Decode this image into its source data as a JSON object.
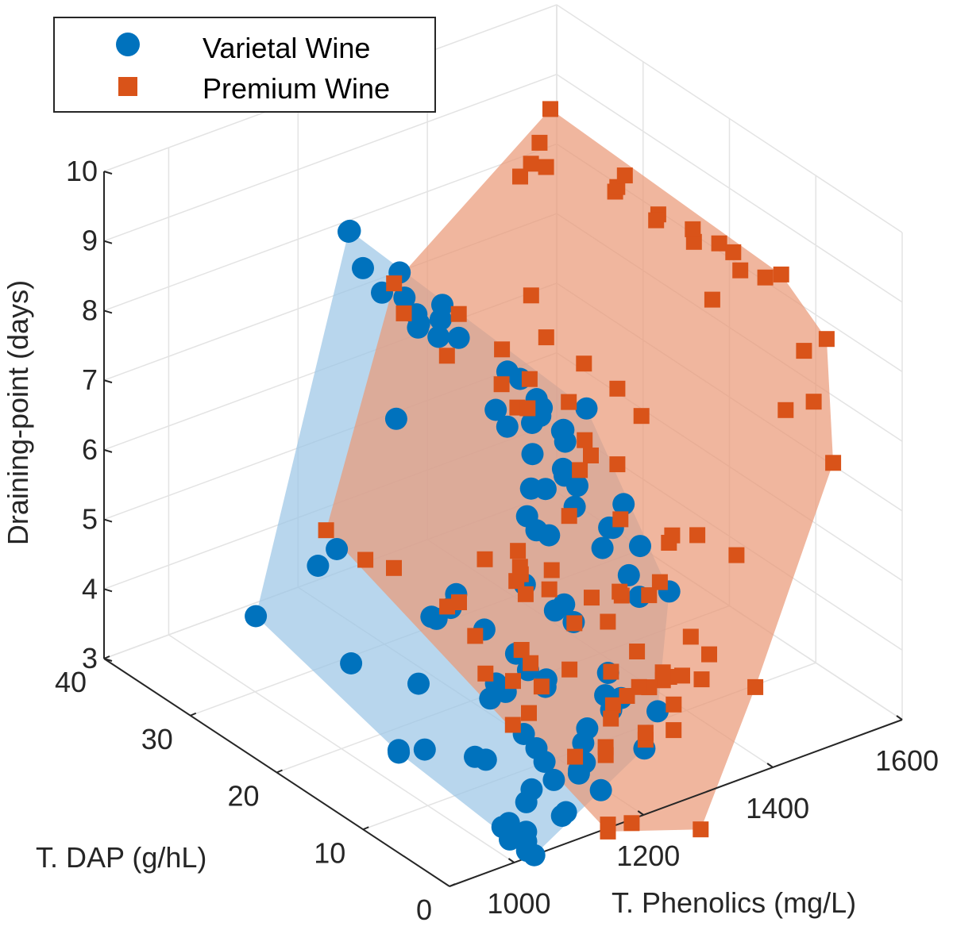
{
  "chart_data": {
    "type": "scatter3d",
    "title": "",
    "xlabel": "T. DAP (g/hL)",
    "ylabel": "T. Phenolics (mg/L)",
    "zlabel": "Draining-point (days)",
    "xlim": [
      0,
      40
    ],
    "ylim": [
      900,
      1600
    ],
    "zlim": [
      3,
      10
    ],
    "xticks": [
      "0",
      "10",
      "20",
      "30",
      "40"
    ],
    "yticks": [
      "1000",
      "1200",
      "1400",
      "1600"
    ],
    "zticks": [
      "3",
      "4",
      "5",
      "6",
      "7",
      "8",
      "9",
      "10"
    ],
    "legend_position": "top-left",
    "series": [
      {
        "name": "Varietal Wine",
        "marker": "circle",
        "color": "#0072BD",
        "hull_color": "#9CC6E6",
        "points": [
          [
            25.8,
            1088.6,
            9.65
          ],
          [
            28.2,
            1122.5,
            9.35
          ],
          [
            26.2,
            1116.1,
            9.0
          ],
          [
            23.4,
            1135.4,
            9.1
          ],
          [
            23.9,
            1149.6,
            8.65
          ],
          [
            22.7,
            1151.9,
            8.5
          ],
          [
            17.2,
            1118.6,
            9.2
          ],
          [
            25.0,
            1129.5,
            8.7
          ],
          [
            23.1,
            1159.9,
            8.25
          ],
          [
            22.7,
            1156.3,
            8.35
          ],
          [
            21.9,
            1178.8,
            8.4
          ],
          [
            21.6,
            1171.5,
            8.2
          ],
          [
            12.3,
            1173.4,
            8.35
          ],
          [
            23.0,
            1221.4,
            7.9
          ],
          [
            15.7,
            1181.2,
            7.6
          ],
          [
            14.5,
            1183.0,
            7.45
          ],
          [
            10.8,
            1223.2,
            7.4
          ],
          [
            12.2,
            1239.0,
            7.4
          ],
          [
            19.9,
            1308.4,
            6.85
          ],
          [
            21.8,
            1331.5,
            6.5
          ],
          [
            16.8,
            1302.5,
            6.15
          ],
          [
            19.6,
            1335.9,
            6.45
          ],
          [
            9.1,
            1268.5,
            6.15
          ],
          [
            9.7,
            1282.3,
            6.05
          ],
          [
            11.0,
            1283.4,
            5.65
          ],
          [
            7.7,
            1297.6,
            5.9
          ],
          [
            4.9,
            1305.2,
            5.45
          ],
          [
            16.0,
            1203.2,
            8.05
          ],
          [
            10.5,
            1175.0,
            8.2
          ],
          [
            13.9,
            1214.0,
            7.0
          ],
          [
            9.4,
            1201.0,
            7.2
          ],
          [
            13.5,
            1208.0,
            7.5
          ],
          [
            6.6,
            1200.0,
            8.3
          ],
          [
            25.1,
            1152.8,
            6.8
          ],
          [
            11.6,
            1252.7,
            6.6
          ],
          [
            8.4,
            1281.4,
            6.5
          ],
          [
            11.3,
            1244.5,
            6.35
          ],
          [
            13.6,
            1207.8,
            6.55
          ],
          [
            10.6,
            1190.0,
            6.85
          ],
          [
            12.6,
            1202.7,
            6.05
          ],
          [
            13.0,
            1193.6,
            6.25
          ],
          [
            12.3,
            1218.1,
            5.95
          ],
          [
            3.7,
            1226.7,
            6.05
          ],
          [
            2.4,
            1225.6,
            5.85
          ],
          [
            7.8,
            1181.4,
            5.45
          ],
          [
            15.6,
            1224.8,
            4.95
          ],
          [
            12.2,
            1226.0,
            4.85
          ],
          [
            10.9,
            1237.6,
            4.75
          ],
          [
            7.3,
            1247.5,
            3.75
          ],
          [
            31.0,
            1110.6,
            4.35
          ],
          [
            15.0,
            1110.6,
            5.25
          ],
          [
            26.6,
            1081.0,
            5.05
          ],
          [
            15.0,
            1080.3,
            5.0
          ],
          [
            17.4,
            1104.5,
            4.75
          ],
          [
            7.0,
            1114.9,
            4.8
          ],
          [
            9.0,
            1107.1,
            4.35
          ],
          [
            16.9,
            1179.6,
            4.35
          ],
          [
            17.6,
            1137.0,
            4.75
          ],
          [
            11.7,
            1159.3,
            4.5
          ],
          [
            9.1,
            1171.2,
            4.3
          ],
          [
            8.7,
            1164.6,
            4.25
          ],
          [
            4.1,
            1195.6,
            4.4
          ],
          [
            6.1,
            1226.7,
            4.45
          ],
          [
            4.3,
            1222.7,
            4.25
          ],
          [
            0.9,
            1233.8,
            4.3
          ],
          [
            15.1,
            1053.8,
            4.15
          ],
          [
            12.3,
            1136.2,
            4.1
          ],
          [
            19.8,
            1012.3,
            4.2
          ],
          [
            6.2,
            1195.8,
            3.75
          ],
          [
            0.0,
            1201.4,
            3.95
          ],
          [
            13.6,
            1144.6,
            3.75
          ],
          [
            8.6,
            1129.8,
            3.7
          ],
          [
            5.0,
            1113.6,
            3.65
          ],
          [
            6.3,
            1190.9,
            3.55
          ],
          [
            33.0,
            1041.2,
            3.7
          ],
          [
            16.0,
            1035.2,
            3.15
          ],
          [
            15.9,
            1033.6,
            3.2
          ],
          [
            5.2,
            1178.6,
            3.4
          ],
          [
            9.6,
            1162.7,
            3.3
          ],
          [
            4.6,
            1161.5,
            3.35
          ],
          [
            5.7,
            1137.5,
            3.25
          ],
          [
            13.7,
            1044.7,
            3.35
          ],
          [
            11.2,
            1105.8,
            3.2
          ],
          [
            4.2,
            1156.4,
            3.45
          ],
          [
            2.6,
            1168.8,
            3.25
          ],
          [
            10.4,
            1078.2,
            3.4
          ],
          [
            2.1,
            1102.1,
            3.15
          ],
          [
            6.3,
            1102.9,
            3.0
          ],
          [
            0.0,
            1080.0,
            3.45
          ],
          [
            3.6,
            1075.0,
            3.5
          ],
          [
            3.5,
            1038.6,
            3.15
          ],
          [
            4.1,
            1036.7,
            3.05
          ],
          [
            0.0,
            1031.0,
            3.0
          ],
          [
            1.8,
            1042.4,
            3.15
          ],
          [
            0.0,
            1020.0,
            3.1
          ],
          [
            1.5,
            1038.5,
            3.05
          ],
          [
            2.0,
            1020.0,
            3.1
          ]
        ]
      },
      {
        "name": "Premium Wine",
        "marker": "square",
        "color": "#D95319",
        "hull_color": "#EA9A78",
        "points": [
          [
            31.0,
            1440.0,
            9.0
          ],
          [
            33.0,
            1480.0,
            9.0
          ],
          [
            30.0,
            1450.0,
            9.0
          ],
          [
            30.0,
            1410.0,
            9.0
          ],
          [
            34.0,
            1510.0,
            9.3
          ],
          [
            22.0,
            1450.0,
            9.3
          ],
          [
            24.0,
            1480.0,
            9.1
          ],
          [
            20.0,
            1490.0,
            9.0
          ],
          [
            25.0,
            1505.0,
            9.1
          ],
          [
            21.0,
            1500.0,
            8.8
          ],
          [
            17.0,
            1505.0,
            8.8
          ],
          [
            14.6,
            1512.1,
            8.95
          ],
          [
            14.2,
            1528.4,
            8.8
          ],
          [
            11.2,
            1537.8,
            8.65
          ],
          [
            9.7,
            1542.5,
            8.8
          ],
          [
            22.0,
            1570.0,
            8.35
          ],
          [
            15.0,
            1550.0,
            8.4
          ],
          [
            16.0,
            1520.0,
            8.0
          ],
          [
            8.0,
            1555.0,
            7.8
          ],
          [
            5.0,
            1530.0,
            7.4
          ],
          [
            8.0,
            1590.0,
            7.85
          ],
          [
            6.0,
            1500.0,
            7.3
          ],
          [
            2.0,
            1520.0,
            6.8
          ],
          [
            33.0,
            1255.0,
            7.75
          ],
          [
            30.0,
            1230.0,
            7.65
          ],
          [
            25.0,
            1230.0,
            7.45
          ],
          [
            25.0,
            1315.0,
            7.25
          ],
          [
            30.0,
            1315.0,
            7.35
          ],
          [
            20.0,
            1375.0,
            7.25
          ],
          [
            23.6,
            1341.4,
            8.05
          ],
          [
            21.0,
            1330.0,
            7.7
          ],
          [
            15.0,
            1360.0,
            7.35
          ],
          [
            12.5,
            1363.8,
            7.15
          ],
          [
            18.2,
            1248.0,
            7.2
          ],
          [
            17.7,
            1257.1,
            7.2
          ],
          [
            20.7,
            1257.0,
            7.3
          ],
          [
            16.3,
            1302.1,
            7.25
          ],
          [
            20.9,
            1303.0,
            7.2
          ],
          [
            13.3,
            1286.6,
            7.0
          ],
          [
            10.8,
            1303.8,
            6.8
          ],
          [
            12.5,
            1285.5,
            6.85
          ],
          [
            11.7,
            1257.8,
            6.8
          ],
          [
            8.0,
            1271.2,
            6.35
          ],
          [
            6.0,
            1324.5,
            6.1
          ],
          [
            5.7,
            1315.4,
            6.05
          ],
          [
            1.5,
            1363.8,
            6.05
          ],
          [
            4.2,
            1339.4,
            6.2
          ],
          [
            10.9,
            1230.6,
            6.3
          ],
          [
            3.6,
            1273.4,
            5.8
          ],
          [
            13.8,
            1190.0,
            5.7
          ],
          [
            11.0,
            1205.0,
            5.6
          ],
          [
            13.6,
            1185.0,
            5.3
          ],
          [
            12.6,
            1178.6,
            5.5
          ],
          [
            12.3,
            1173.3,
            5.65
          ],
          [
            15.0,
            1155.0,
            5.6
          ],
          [
            12.9,
            1190.1,
            5.15
          ],
          [
            10.9,
            1200.0,
            5.35
          ],
          [
            9.0,
            1240.0,
            5.25
          ],
          [
            7.2,
            1262.4,
            5.35
          ],
          [
            5.7,
            1284.8,
            5.4
          ],
          [
            6.0,
            1225.0,
            5.2
          ],
          [
            8.0,
            1200.0,
            5.1
          ],
          [
            3.0,
            1230.0,
            5.0
          ],
          [
            28.0,
            1083.1,
            5.2
          ],
          [
            24.6,
            1098.5,
            5.0
          ],
          [
            22.5,
            1114.5,
            5.0
          ],
          [
            17.9,
            1135.5,
            4.75
          ],
          [
            17.5,
            1148.5,
            4.8
          ],
          [
            11.5,
            1165.0,
            4.55
          ],
          [
            7.3,
            1183.1,
            4.55
          ],
          [
            15.0,
            1140.0,
            4.55
          ],
          [
            3.0,
            1270.0,
            4.45
          ],
          [
            1.5,
            1310.0,
            4.45
          ],
          [
            11.9,
            1114.6,
            4.35
          ],
          [
            10.7,
            1141.2,
            4.25
          ],
          [
            8.5,
            1155.8,
            4.3
          ],
          [
            8.0,
            1129.6,
            4.05
          ],
          [
            11.2,
            1175.0,
            4.35
          ],
          [
            5.0,
            1219.6,
            4.1
          ],
          [
            2.0,
            1235.4,
            4.55
          ],
          [
            3.9,
            1226.6,
            4.3
          ],
          [
            1.0,
            1260.0,
            4.3
          ],
          [
            -2.0,
            1346.2,
            4.5
          ],
          [
            4.0,
            1355.0,
            4.45
          ],
          [
            9.5,
            1400.0,
            4.1
          ],
          [
            14.0,
            1350.0,
            4.55
          ],
          [
            4.0,
            1300.0,
            3.55
          ],
          [
            9.0,
            1360.0,
            3.7
          ],
          [
            9.0,
            1380.0,
            3.65
          ],
          [
            9.0,
            1350.0,
            3.8
          ],
          [
            12.0,
            1310.0,
            3.7
          ],
          [
            9.5,
            1320.0,
            3.65
          ],
          [
            7.9,
            1255.0,
            3.55
          ],
          [
            4.0,
            1195.0,
            3.55
          ],
          [
            8.0,
            1310.0,
            3.05
          ],
          [
            8.0,
            1310.0,
            3.15
          ],
          [
            10.0,
            1275.0,
            2.9
          ],
          [
            -4.0,
            1235.0,
            3.0
          ],
          [
            0.0,
            1145.0,
            2.95
          ],
          [
            0.0,
            1145.0,
            3.05
          ],
          [
            -2.0,
            1155.0,
            3.2
          ],
          [
            9.8,
            1225.0,
            2.95
          ],
          [
            14.0,
            1185.0,
            3.2
          ]
        ]
      }
    ]
  }
}
